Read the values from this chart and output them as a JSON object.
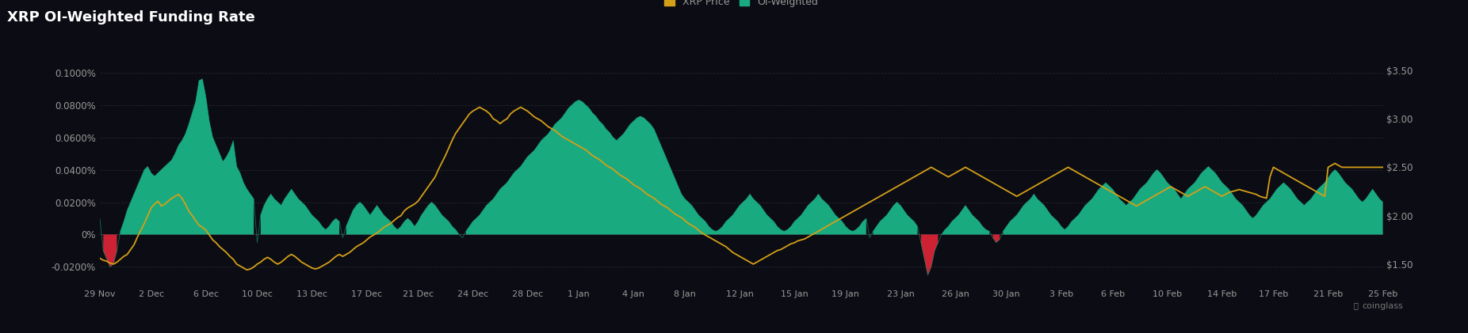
{
  "title": "XRP OI-Weighted Funding Rate",
  "background_color": "#0c0c14",
  "plot_bg_color": "#0c0c14",
  "grid_color": "#2a2a3a",
  "title_color": "#ffffff",
  "tick_label_color": "#999999",
  "funding_color": "#1aaa80",
  "funding_neg_color": "#cc2233",
  "price_color": "#d4a017",
  "legend_labels": [
    "XRP Price",
    "OI-Weighted"
  ],
  "yleft_ticks": [
    -0.0002,
    0.0,
    0.0002,
    0.0004,
    0.0006,
    0.0008,
    0.001
  ],
  "yleft_labels": [
    "-0.0200%",
    "0%",
    "0.0200%",
    "0.0400%",
    "0.0600%",
    "0.0800%",
    "0.1000%"
  ],
  "yright_ticks": [
    1.5,
    2.0,
    2.5,
    3.0,
    3.5
  ],
  "yright_labels": [
    "$1.50",
    "$2.00",
    "$2.50",
    "$3.00",
    "$3.50"
  ],
  "x_tick_labels": [
    "29 Nov",
    "2 Dec",
    "6 Dec",
    "10 Dec",
    "13 Dec",
    "17 Dec",
    "21 Dec",
    "24 Dec",
    "28 Dec",
    "1 Jan",
    "4 Jan",
    "8 Jan",
    "12 Jan",
    "15 Jan",
    "19 Jan",
    "23 Jan",
    "26 Jan",
    "30 Jan",
    "3 Feb",
    "6 Feb",
    "10 Feb",
    "14 Feb",
    "17 Feb",
    "21 Feb",
    "25 Feb"
  ],
  "funding_rates": [
    0.0001,
    -0.0001,
    -0.00015,
    -0.0002,
    -0.00018,
    -0.0001,
    2e-05,
    8e-05,
    0.00015,
    0.0002,
    0.00025,
    0.0003,
    0.00035,
    0.0004,
    0.00042,
    0.00038,
    0.00036,
    0.00038,
    0.0004,
    0.00042,
    0.00044,
    0.00046,
    0.0005,
    0.00055,
    0.00058,
    0.00062,
    0.00068,
    0.00075,
    0.00082,
    0.00095,
    0.00096,
    0.00085,
    0.0007,
    0.0006,
    0.00055,
    0.0005,
    0.00045,
    0.00048,
    0.00052,
    0.00058,
    0.00042,
    0.00038,
    0.00032,
    0.00028,
    0.00025,
    0.00022,
    -5e-05,
    0.00012,
    0.00018,
    0.00022,
    0.00025,
    0.00022,
    0.0002,
    0.00018,
    0.00022,
    0.00025,
    0.00028,
    0.00025,
    0.00022,
    0.0002,
    0.00018,
    0.00015,
    0.00012,
    0.0001,
    8e-05,
    5e-05,
    3e-05,
    5e-05,
    8e-05,
    0.0001,
    8e-05,
    -2e-05,
    5e-05,
    0.0001,
    0.00015,
    0.00018,
    0.0002,
    0.00018,
    0.00015,
    0.00012,
    0.00015,
    0.00018,
    0.00015,
    0.00012,
    0.0001,
    8e-05,
    5e-05,
    3e-05,
    5e-05,
    8e-05,
    0.0001,
    8e-05,
    5e-05,
    8e-05,
    0.00012,
    0.00015,
    0.00018,
    0.0002,
    0.00018,
    0.00015,
    0.00012,
    0.0001,
    8e-05,
    5e-05,
    3e-05,
    0.0,
    -2e-05,
    2e-05,
    5e-05,
    8e-05,
    0.0001,
    0.00012,
    0.00015,
    0.00018,
    0.0002,
    0.00022,
    0.00025,
    0.00028,
    0.0003,
    0.00032,
    0.00035,
    0.00038,
    0.0004,
    0.00042,
    0.00045,
    0.00048,
    0.0005,
    0.00052,
    0.00055,
    0.00058,
    0.0006,
    0.00062,
    0.00065,
    0.00068,
    0.0007,
    0.00072,
    0.00075,
    0.00078,
    0.0008,
    0.00082,
    0.00083,
    0.00082,
    0.0008,
    0.00078,
    0.00075,
    0.00073,
    0.0007,
    0.00068,
    0.00065,
    0.00063,
    0.0006,
    0.00058,
    0.0006,
    0.00062,
    0.00065,
    0.00068,
    0.0007,
    0.00072,
    0.00073,
    0.00072,
    0.0007,
    0.00068,
    0.00065,
    0.0006,
    0.00055,
    0.0005,
    0.00045,
    0.0004,
    0.00035,
    0.0003,
    0.00025,
    0.00022,
    0.0002,
    0.00018,
    0.00015,
    0.00012,
    0.0001,
    8e-05,
    5e-05,
    3e-05,
    2e-05,
    3e-05,
    5e-05,
    8e-05,
    0.0001,
    0.00012,
    0.00015,
    0.00018,
    0.0002,
    0.00022,
    0.00025,
    0.00022,
    0.0002,
    0.00018,
    0.00015,
    0.00012,
    0.0001,
    8e-05,
    5e-05,
    3e-05,
    2e-05,
    3e-05,
    5e-05,
    8e-05,
    0.0001,
    0.00012,
    0.00015,
    0.00018,
    0.0002,
    0.00022,
    0.00025,
    0.00022,
    0.0002,
    0.00018,
    0.00015,
    0.00012,
    0.0001,
    8e-05,
    5e-05,
    3e-05,
    2e-05,
    3e-05,
    5e-05,
    8e-05,
    0.0001,
    -2e-05,
    2e-05,
    5e-05,
    8e-05,
    0.0001,
    0.00012,
    0.00015,
    0.00018,
    0.0002,
    0.00018,
    0.00015,
    0.00012,
    0.0001,
    8e-05,
    5e-05,
    -5e-05,
    -0.00015,
    -0.00025,
    -0.0002,
    -0.0001,
    -5e-05,
    0.0,
    3e-05,
    5e-05,
    8e-05,
    0.0001,
    0.00012,
    0.00015,
    0.00018,
    0.00015,
    0.00012,
    0.0001,
    8e-05,
    5e-05,
    3e-05,
    2e-05,
    -2e-05,
    -5e-05,
    -3e-05,
    2e-05,
    5e-05,
    8e-05,
    0.0001,
    0.00012,
    0.00015,
    0.00018,
    0.0002,
    0.00022,
    0.00025,
    0.00022,
    0.0002,
    0.00018,
    0.00015,
    0.00012,
    0.0001,
    8e-05,
    5e-05,
    3e-05,
    5e-05,
    8e-05,
    0.0001,
    0.00012,
    0.00015,
    0.00018,
    0.0002,
    0.00022,
    0.00025,
    0.00028,
    0.0003,
    0.00032,
    0.0003,
    0.00028,
    0.00025,
    0.00022,
    0.0002,
    0.00018,
    0.0002,
    0.00022,
    0.00025,
    0.00028,
    0.0003,
    0.00032,
    0.00035,
    0.00038,
    0.0004,
    0.00038,
    0.00035,
    0.00032,
    0.0003,
    0.00028,
    0.00025,
    0.00022,
    0.00025,
    0.00028,
    0.0003,
    0.00032,
    0.00035,
    0.00038,
    0.0004,
    0.00042,
    0.0004,
    0.00038,
    0.00035,
    0.00032,
    0.0003,
    0.00028,
    0.00025,
    0.00022,
    0.0002,
    0.00018,
    0.00015,
    0.00012,
    0.0001,
    0.00012,
    0.00015,
    0.00018,
    0.0002,
    0.00022,
    0.00025,
    0.00028,
    0.0003,
    0.00032,
    0.0003,
    0.00028,
    0.00025,
    0.00022,
    0.0002,
    0.00018,
    0.0002,
    0.00022,
    0.00025,
    0.00028,
    0.0003,
    0.00032,
    0.00035,
    0.00038,
    0.0004,
    0.00038,
    0.00035,
    0.00032,
    0.0003,
    0.00028,
    0.00025,
    0.00022,
    0.0002,
    0.00022,
    0.00025,
    0.00028,
    0.00025,
    0.00022,
    0.0002
  ],
  "xrp_price": [
    1.56,
    1.54,
    1.53,
    1.51,
    1.5,
    1.52,
    1.55,
    1.58,
    1.6,
    1.65,
    1.7,
    1.78,
    1.85,
    1.92,
    2.0,
    2.08,
    2.12,
    2.15,
    2.1,
    2.12,
    2.15,
    2.18,
    2.2,
    2.22,
    2.18,
    2.12,
    2.05,
    2.0,
    1.95,
    1.9,
    1.88,
    1.85,
    1.8,
    1.75,
    1.72,
    1.68,
    1.65,
    1.62,
    1.58,
    1.55,
    1.5,
    1.48,
    1.46,
    1.44,
    1.45,
    1.47,
    1.5,
    1.52,
    1.55,
    1.57,
    1.55,
    1.52,
    1.5,
    1.52,
    1.55,
    1.58,
    1.6,
    1.58,
    1.55,
    1.52,
    1.5,
    1.48,
    1.46,
    1.45,
    1.46,
    1.48,
    1.5,
    1.52,
    1.55,
    1.58,
    1.6,
    1.58,
    1.6,
    1.62,
    1.65,
    1.68,
    1.7,
    1.72,
    1.75,
    1.78,
    1.8,
    1.82,
    1.85,
    1.88,
    1.9,
    1.92,
    1.95,
    1.98,
    2.0,
    2.05,
    2.08,
    2.1,
    2.12,
    2.15,
    2.2,
    2.25,
    2.3,
    2.35,
    2.4,
    2.48,
    2.55,
    2.62,
    2.7,
    2.78,
    2.85,
    2.9,
    2.95,
    3.0,
    3.05,
    3.08,
    3.1,
    3.12,
    3.1,
    3.08,
    3.05,
    3.0,
    2.98,
    2.95,
    2.98,
    3.0,
    3.05,
    3.08,
    3.1,
    3.12,
    3.1,
    3.08,
    3.05,
    3.02,
    3.0,
    2.98,
    2.95,
    2.92,
    2.9,
    2.88,
    2.85,
    2.82,
    2.8,
    2.78,
    2.76,
    2.74,
    2.72,
    2.7,
    2.68,
    2.65,
    2.62,
    2.6,
    2.58,
    2.55,
    2.52,
    2.5,
    2.48,
    2.45,
    2.42,
    2.4,
    2.38,
    2.35,
    2.32,
    2.3,
    2.28,
    2.25,
    2.22,
    2.2,
    2.18,
    2.15,
    2.12,
    2.1,
    2.08,
    2.05,
    2.02,
    2.0,
    1.98,
    1.95,
    1.92,
    1.9,
    1.88,
    1.85,
    1.82,
    1.8,
    1.78,
    1.76,
    1.74,
    1.72,
    1.7,
    1.68,
    1.65,
    1.62,
    1.6,
    1.58,
    1.56,
    1.54,
    1.52,
    1.5,
    1.52,
    1.54,
    1.56,
    1.58,
    1.6,
    1.62,
    1.64,
    1.65,
    1.67,
    1.69,
    1.71,
    1.72,
    1.74,
    1.75,
    1.76,
    1.78,
    1.8,
    1.82,
    1.84,
    1.86,
    1.88,
    1.9,
    1.92,
    1.94,
    1.96,
    1.98,
    2.0,
    2.02,
    2.04,
    2.06,
    2.08,
    2.1,
    2.12,
    2.14,
    2.16,
    2.18,
    2.2,
    2.22,
    2.24,
    2.26,
    2.28,
    2.3,
    2.32,
    2.34,
    2.36,
    2.38,
    2.4,
    2.42,
    2.44,
    2.46,
    2.48,
    2.5,
    2.48,
    2.46,
    2.44,
    2.42,
    2.4,
    2.42,
    2.44,
    2.46,
    2.48,
    2.5,
    2.48,
    2.46,
    2.44,
    2.42,
    2.4,
    2.38,
    2.36,
    2.34,
    2.32,
    2.3,
    2.28,
    2.26,
    2.24,
    2.22,
    2.2,
    2.22,
    2.24,
    2.26,
    2.28,
    2.3,
    2.32,
    2.34,
    2.36,
    2.38,
    2.4,
    2.42,
    2.44,
    2.46,
    2.48,
    2.5,
    2.48,
    2.46,
    2.44,
    2.42,
    2.4,
    2.38,
    2.36,
    2.34,
    2.32,
    2.3,
    2.28,
    2.26,
    2.24,
    2.22,
    2.2,
    2.18,
    2.16,
    2.14,
    2.12,
    2.1,
    2.12,
    2.14,
    2.16,
    2.18,
    2.2,
    2.22,
    2.24,
    2.26,
    2.28,
    2.3,
    2.28,
    2.26,
    2.24,
    2.22,
    2.2,
    2.22,
    2.24,
    2.26,
    2.28,
    2.3,
    2.28,
    2.26,
    2.24,
    2.22,
    2.2,
    2.22,
    2.24,
    2.25,
    2.26,
    2.27,
    2.26,
    2.25,
    2.24,
    2.23,
    2.22,
    2.2,
    2.19,
    2.18,
    2.4,
    2.5,
    2.48,
    2.46,
    2.44,
    2.42,
    2.4,
    2.38,
    2.36,
    2.34,
    2.32,
    2.3,
    2.28,
    2.26,
    2.24,
    2.22,
    2.2,
    2.5,
    2.52,
    2.54,
    2.52,
    2.5
  ]
}
